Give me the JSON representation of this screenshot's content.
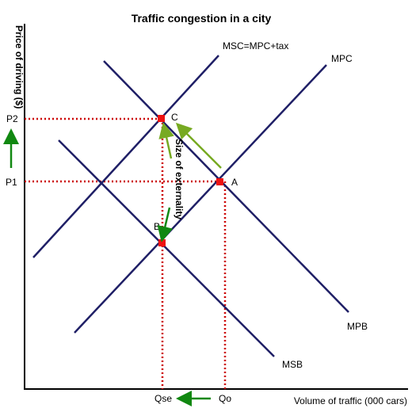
{
  "diagram": {
    "title": "Traffic congestion in a city",
    "y_axis_label": "Price of driving ($)",
    "x_axis_label": "Volume of traffic (000 cars)",
    "price_labels": {
      "p2": "P2",
      "p1": "P1"
    },
    "quantity_labels": {
      "qse": "Qse",
      "qo": "Qo"
    },
    "curves": {
      "msc": "MSC=MPC+tax",
      "mpc": "MPC",
      "mpb": "MPB",
      "msb": "MSB"
    },
    "points": {
      "a": "A",
      "b": "B",
      "c": "C"
    },
    "annotation": "Size of externality",
    "colors": {
      "curve": "#1f1f66",
      "guide": "#cc0000",
      "point": "#ee1111",
      "arrow": "#118811",
      "arrow_light": "#77aa22"
    }
  }
}
